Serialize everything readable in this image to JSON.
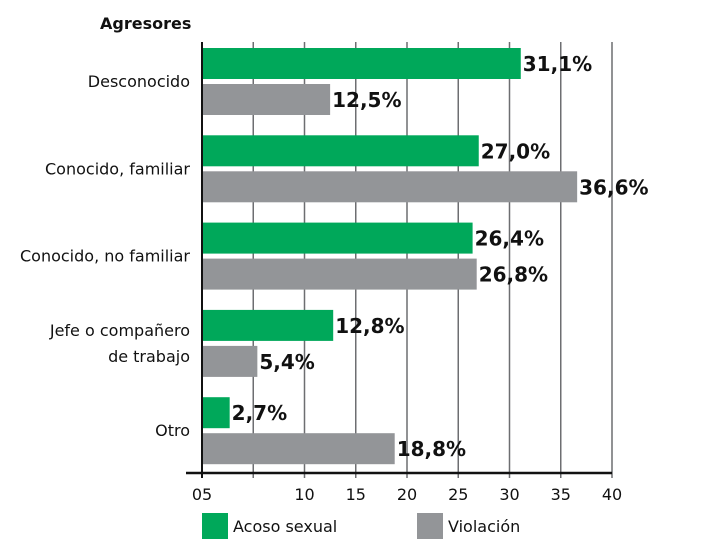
{
  "chart_data": {
    "type": "bar",
    "orientation": "horizontal",
    "title": "Agresores",
    "categories": [
      [
        "Desconocido"
      ],
      [
        "Conocido, familiar"
      ],
      [
        "Conocido, no familiar"
      ],
      [
        "Jefe o compañero",
        "de trabajo"
      ],
      [
        "Otro"
      ]
    ],
    "series": [
      {
        "name": "Acoso sexual",
        "color": "#00a85a",
        "values": [
          31.1,
          27.0,
          26.4,
          12.8,
          2.7
        ],
        "labels": [
          "31,1%",
          "27,0%",
          "26,4%",
          "12,8%",
          "2,7%"
        ]
      },
      {
        "name": "Violación",
        "color": "#939598",
        "values": [
          12.5,
          36.6,
          26.8,
          5.4,
          18.8
        ],
        "labels": [
          "12,5%",
          "36,6%",
          "26,8%",
          "5,4%",
          "18,8%"
        ]
      }
    ],
    "xlim": [
      0,
      40
    ],
    "ticks": [
      0,
      5,
      10,
      15,
      20,
      25,
      30,
      35,
      40
    ],
    "tick_labels": [
      "05",
      "",
      "10",
      "15",
      "20",
      "25",
      "30",
      "35",
      "40"
    ],
    "grid": true,
    "legend": "bottom"
  }
}
